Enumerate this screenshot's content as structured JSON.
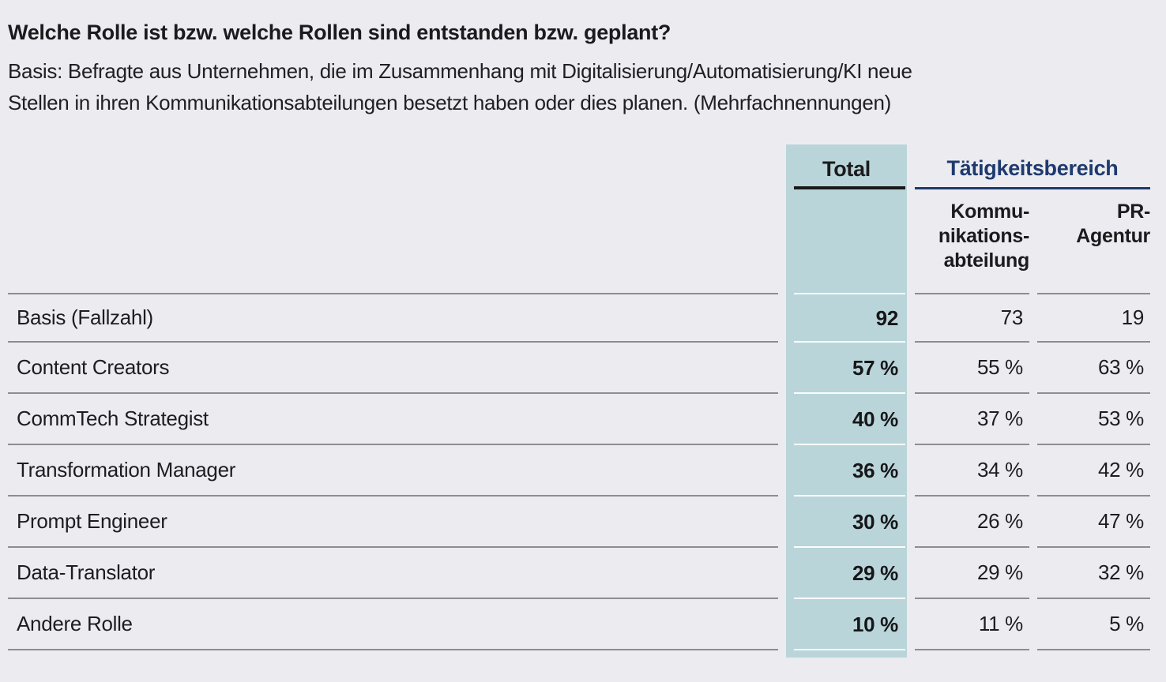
{
  "title": "Welche Rolle ist bzw. welche Rollen sind entstanden bzw. geplant?",
  "subtitle_lines": [
    "Basis: Befragte aus Unternehmen, die im Zusammenhang mit Digitalisierung/Automatisierung/KI neue",
    "Stellen in ihren Kommunikationsabteilungen besetzt haben oder dies planen. (Mehrfachnennungen)"
  ],
  "table": {
    "total_header": "Total",
    "group_header": "Tätigkeitsbereich",
    "col_kommunikation_header": "Kommu-\nnikations-\nabteilung",
    "col_pr_header": "PR-\nAgentur",
    "rows": [
      {
        "label": "Basis (Fallzahl)",
        "total": "92",
        "kommunikation": "73",
        "pr": "19"
      },
      {
        "label": "Content Creators",
        "total": "57 %",
        "kommunikation": "55 %",
        "pr": "63 %"
      },
      {
        "label": "CommTech Strategist",
        "total": "40 %",
        "kommunikation": "37 %",
        "pr": "53 %"
      },
      {
        "label": "Transformation Manager",
        "total": "36 %",
        "kommunikation": "34 %",
        "pr": "42 %"
      },
      {
        "label": "Prompt Engineer",
        "total": "30 %",
        "kommunikation": "26 %",
        "pr": "47 %"
      },
      {
        "label": "Data-Translator",
        "total": "29 %",
        "kommunikation": "29 %",
        "pr": "32 %"
      },
      {
        "label": "Andere Rolle",
        "total": "10 %",
        "kommunikation": "11 %",
        "pr": "5 %"
      }
    ]
  },
  "colors": {
    "background": "#ececf0",
    "total_column_fill": "#b9d5d9",
    "group_header_navy": "#1e3a6e",
    "separator_gray": "#8d8d90",
    "total_underline_black": "#191919",
    "text_dark": "#1d1d20"
  },
  "chart_data": {
    "type": "table",
    "title": "Welche Rolle ist bzw. welche Rollen sind entstanden bzw. geplant?",
    "subtitle": "Basis: Befragte aus Unternehmen, die im Zusammenhang mit Digitalisierung/Automatisierung/KI neue Stellen in ihren Kommunikationsabteilungen besetzt haben oder dies planen. (Mehrfachnennungen)",
    "column_group_label": "Tätigkeitsbereich",
    "columns": [
      "Total",
      "Kommunikationsabteilung",
      "PR-Agentur"
    ],
    "basis_row": {
      "label": "Basis (Fallzahl)",
      "values": [
        92,
        73,
        19
      ]
    },
    "unit": "%",
    "rows": [
      {
        "label": "Content Creators",
        "values_pct": [
          57,
          55,
          63
        ]
      },
      {
        "label": "CommTech Strategist",
        "values_pct": [
          40,
          37,
          53
        ]
      },
      {
        "label": "Transformation Manager",
        "values_pct": [
          36,
          34,
          42
        ]
      },
      {
        "label": "Prompt Engineer",
        "values_pct": [
          30,
          26,
          47
        ]
      },
      {
        "label": "Data-Translator",
        "values_pct": [
          29,
          29,
          32
        ]
      },
      {
        "label": "Andere Rolle",
        "values_pct": [
          10,
          11,
          5
        ]
      }
    ]
  }
}
